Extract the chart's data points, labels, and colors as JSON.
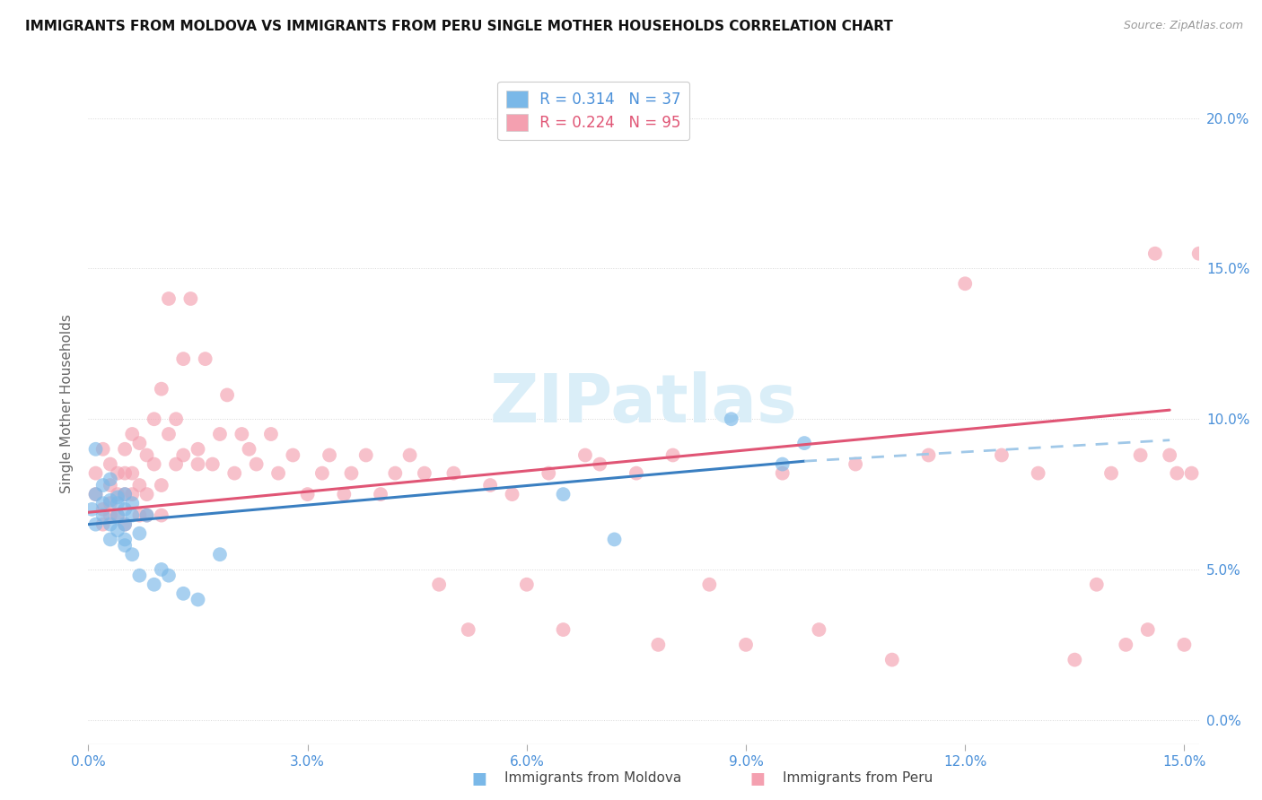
{
  "title": "IMMIGRANTS FROM MOLDOVA VS IMMIGRANTS FROM PERU SINGLE MOTHER HOUSEHOLDS CORRELATION CHART",
  "source": "Source: ZipAtlas.com",
  "ylabel": "Single Mother Households",
  "legend_moldova": "Immigrants from Moldova",
  "legend_peru": "Immigrants from Peru",
  "r_moldova": "0.314",
  "n_moldova": "37",
  "r_peru": "0.224",
  "n_peru": "95",
  "xlim": [
    0.0,
    0.152
  ],
  "ylim": [
    -0.008,
    0.218
  ],
  "x_ticks": [
    0.0,
    0.03,
    0.06,
    0.09,
    0.12,
    0.15
  ],
  "y_ticks": [
    0.0,
    0.05,
    0.1,
    0.15,
    0.2
  ],
  "color_moldova": "#7ab8e8",
  "color_peru": "#f4a0b0",
  "color_moldova_line": "#3a7fc1",
  "color_peru_line": "#e05575",
  "color_moldova_dashed": "#a0c8e8",
  "watermark_color": "#daeef8",
  "moldova_x": [
    0.0005,
    0.001,
    0.001,
    0.001,
    0.002,
    0.002,
    0.002,
    0.003,
    0.003,
    0.003,
    0.003,
    0.004,
    0.004,
    0.004,
    0.004,
    0.005,
    0.005,
    0.005,
    0.005,
    0.005,
    0.006,
    0.006,
    0.006,
    0.007,
    0.007,
    0.008,
    0.009,
    0.01,
    0.011,
    0.013,
    0.015,
    0.018,
    0.065,
    0.072,
    0.088,
    0.095,
    0.098
  ],
  "moldova_y": [
    0.07,
    0.09,
    0.075,
    0.065,
    0.072,
    0.068,
    0.078,
    0.073,
    0.065,
    0.08,
    0.06,
    0.074,
    0.068,
    0.072,
    0.063,
    0.07,
    0.065,
    0.058,
    0.075,
    0.06,
    0.068,
    0.072,
    0.055,
    0.062,
    0.048,
    0.068,
    0.045,
    0.05,
    0.048,
    0.042,
    0.04,
    0.055,
    0.075,
    0.06,
    0.1,
    0.085,
    0.092
  ],
  "peru_x": [
    0.001,
    0.001,
    0.002,
    0.002,
    0.002,
    0.003,
    0.003,
    0.003,
    0.003,
    0.004,
    0.004,
    0.004,
    0.005,
    0.005,
    0.005,
    0.005,
    0.006,
    0.006,
    0.006,
    0.007,
    0.007,
    0.007,
    0.008,
    0.008,
    0.008,
    0.009,
    0.009,
    0.01,
    0.01,
    0.01,
    0.011,
    0.011,
    0.012,
    0.012,
    0.013,
    0.013,
    0.014,
    0.015,
    0.015,
    0.016,
    0.017,
    0.018,
    0.019,
    0.02,
    0.021,
    0.022,
    0.023,
    0.025,
    0.026,
    0.028,
    0.03,
    0.032,
    0.033,
    0.035,
    0.036,
    0.038,
    0.04,
    0.042,
    0.044,
    0.046,
    0.048,
    0.05,
    0.052,
    0.055,
    0.058,
    0.06,
    0.063,
    0.065,
    0.068,
    0.07,
    0.075,
    0.078,
    0.08,
    0.085,
    0.09,
    0.095,
    0.1,
    0.105,
    0.11,
    0.115,
    0.12,
    0.125,
    0.13,
    0.135,
    0.138,
    0.14,
    0.142,
    0.144,
    0.145,
    0.146,
    0.148,
    0.149,
    0.15,
    0.151,
    0.152
  ],
  "peru_y": [
    0.075,
    0.082,
    0.07,
    0.09,
    0.065,
    0.078,
    0.068,
    0.072,
    0.085,
    0.075,
    0.082,
    0.068,
    0.09,
    0.075,
    0.082,
    0.065,
    0.095,
    0.082,
    0.075,
    0.092,
    0.078,
    0.068,
    0.088,
    0.075,
    0.068,
    0.1,
    0.085,
    0.11,
    0.078,
    0.068,
    0.095,
    0.14,
    0.085,
    0.1,
    0.12,
    0.088,
    0.14,
    0.09,
    0.085,
    0.12,
    0.085,
    0.095,
    0.108,
    0.082,
    0.095,
    0.09,
    0.085,
    0.095,
    0.082,
    0.088,
    0.075,
    0.082,
    0.088,
    0.075,
    0.082,
    0.088,
    0.075,
    0.082,
    0.088,
    0.082,
    0.045,
    0.082,
    0.03,
    0.078,
    0.075,
    0.045,
    0.082,
    0.03,
    0.088,
    0.085,
    0.082,
    0.025,
    0.088,
    0.045,
    0.025,
    0.082,
    0.03,
    0.085,
    0.02,
    0.088,
    0.145,
    0.088,
    0.082,
    0.02,
    0.045,
    0.082,
    0.025,
    0.088,
    0.03,
    0.155,
    0.088,
    0.082,
    0.025,
    0.082,
    0.155
  ],
  "trend_mol_x0": 0.0,
  "trend_mol_y0": 0.065,
  "trend_mol_x1": 0.098,
  "trend_mol_y1": 0.086,
  "trend_mol_dash_x1": 0.148,
  "trend_mol_dash_y1": 0.093,
  "trend_peru_x0": 0.0,
  "trend_peru_y0": 0.069,
  "trend_peru_x1": 0.148,
  "trend_peru_y1": 0.103
}
